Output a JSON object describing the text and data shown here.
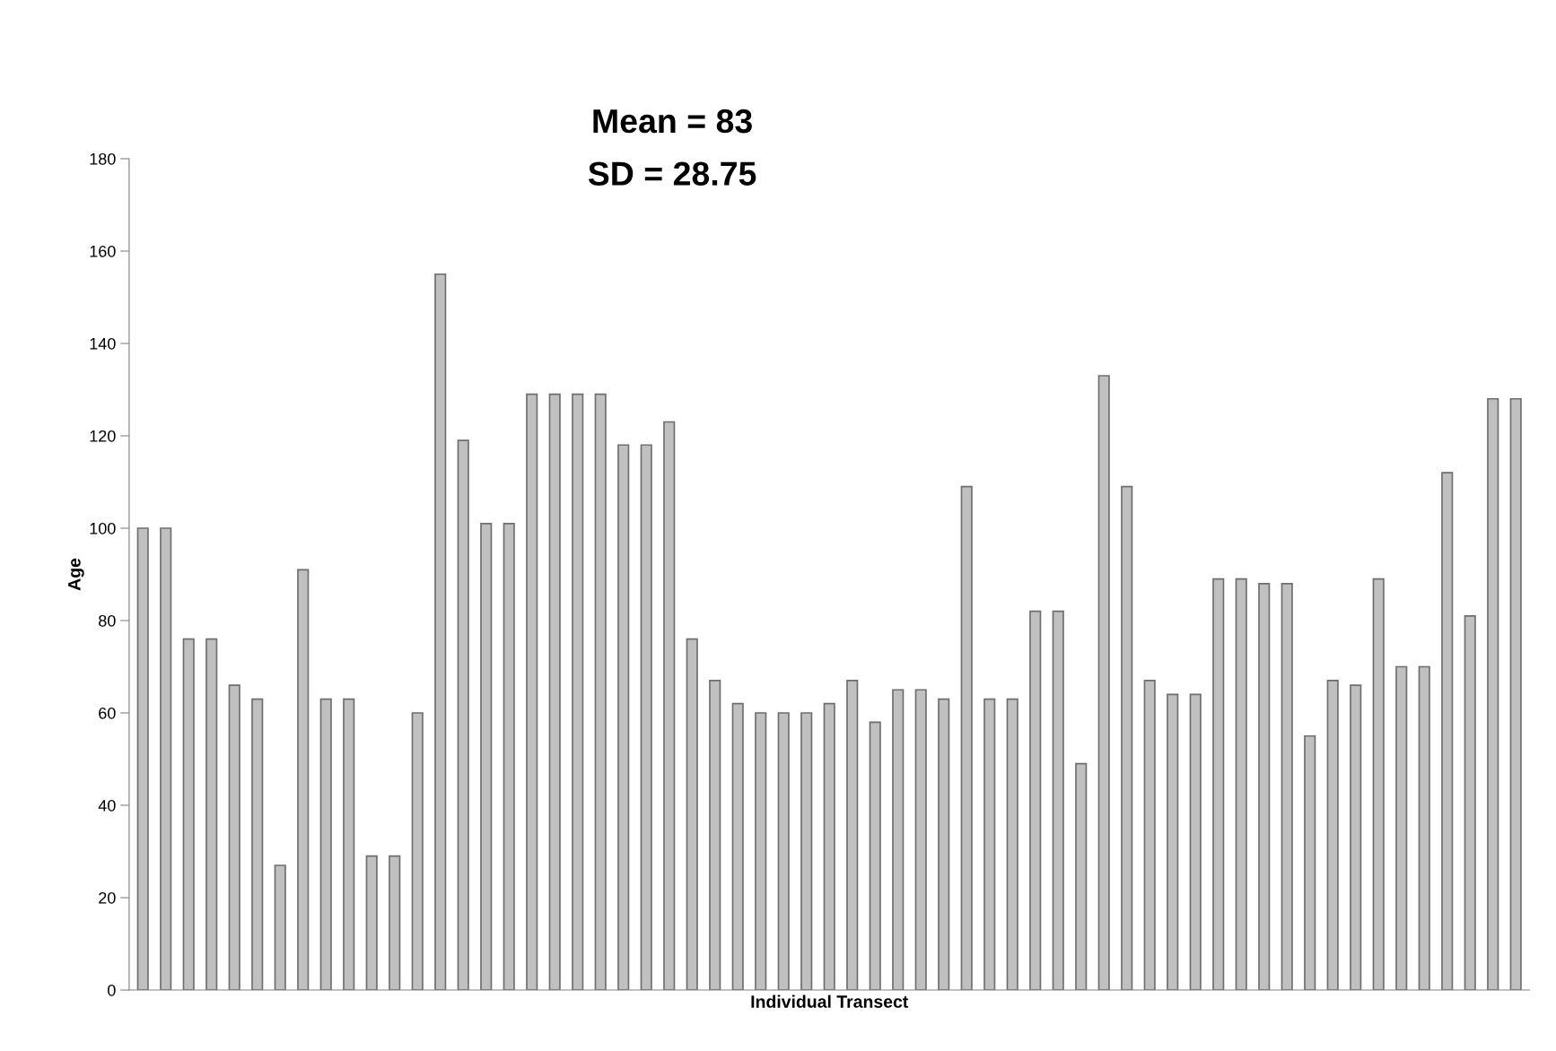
{
  "chart_data": {
    "type": "bar",
    "xlabel": "Individual Transect",
    "ylabel": "Age",
    "annotations": [
      "Mean = 83",
      "SD = 28.75"
    ],
    "categories": [
      null,
      null,
      null,
      null,
      null,
      null,
      null,
      null,
      null,
      null,
      null,
      null,
      null,
      null,
      null,
      null,
      null,
      null,
      null,
      null,
      null,
      null,
      null,
      null,
      null,
      null,
      null,
      null,
      null,
      null,
      null,
      null,
      null,
      null,
      null,
      null,
      null,
      null,
      null,
      null,
      null,
      null,
      null,
      null,
      null,
      null,
      null,
      null,
      null,
      null,
      null,
      null,
      null,
      null,
      null,
      null,
      null,
      null,
      null,
      null,
      null
    ],
    "values": [
      100,
      100,
      76,
      76,
      66,
      63,
      27,
      91,
      63,
      63,
      29,
      29,
      60,
      155,
      119,
      101,
      101,
      129,
      129,
      129,
      129,
      118,
      118,
      123,
      76,
      67,
      62,
      60,
      60,
      60,
      62,
      67,
      58,
      65,
      65,
      63,
      109,
      63,
      63,
      82,
      82,
      49,
      133,
      109,
      67,
      64,
      64,
      89,
      89,
      88,
      88,
      55,
      67,
      66,
      89,
      70,
      70,
      112,
      81,
      128,
      128
    ],
    "color": "#c0c0c0",
    "ylim": [
      0,
      180
    ],
    "yticks": [
      0,
      20,
      40,
      60,
      80,
      100,
      120,
      140,
      160,
      180
    ],
    "grid": false,
    "legend": false,
    "tick_labels": "y"
  }
}
